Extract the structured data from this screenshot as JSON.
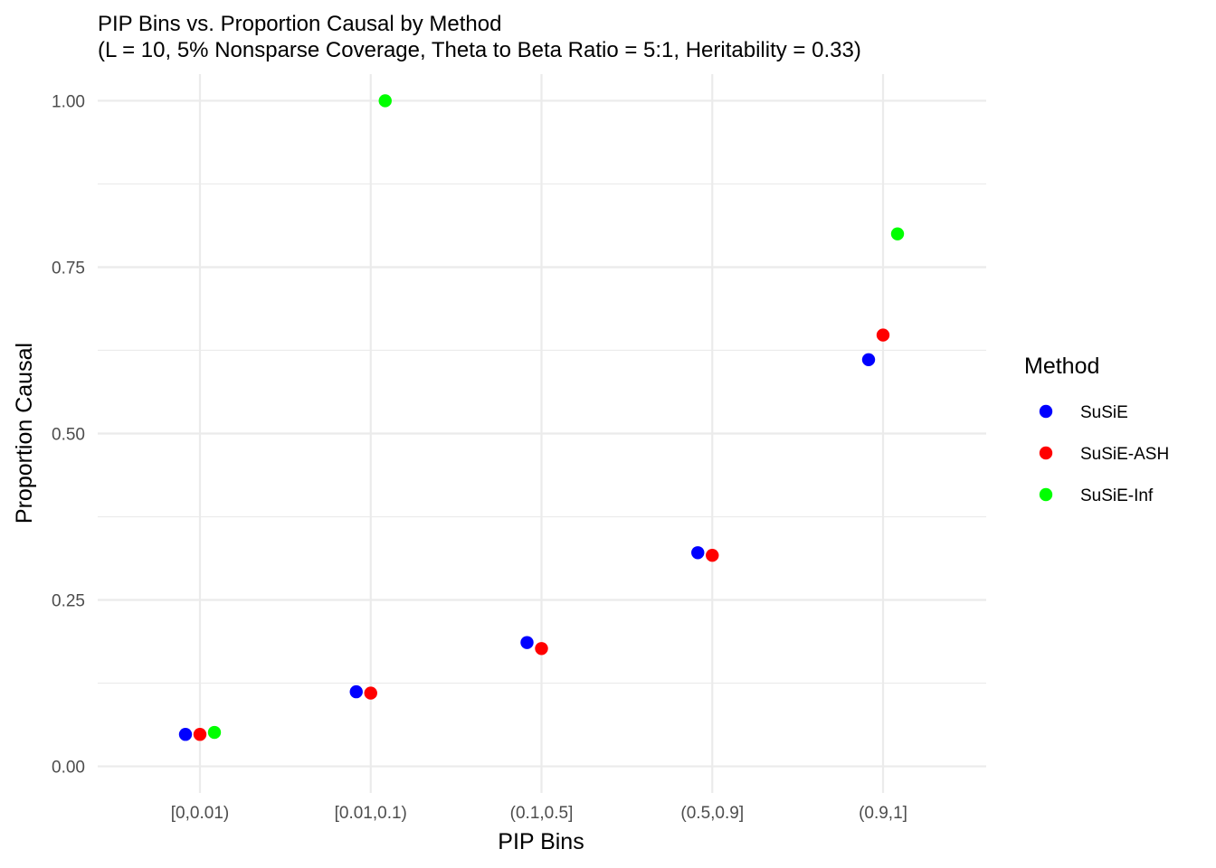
{
  "chart_data": {
    "type": "scatter",
    "title": "PIP Bins vs. Proportion Causal by Method",
    "subtitle": "(L = 10, 5% Nonsparse Coverage, Theta to Beta Ratio = 5:1, Heritability = 0.33)",
    "xlabel": "PIP Bins",
    "ylabel": "Proportion Causal",
    "categories": [
      "[0,0.01)",
      "[0.01,0.1)",
      "(0.1,0.5]",
      "(0.5,0.9]",
      "(0.9,1]"
    ],
    "y_ticks": [
      "0.00",
      "0.25",
      "0.50",
      "0.75",
      "1.00"
    ],
    "ylim": [
      -0.04,
      1.04
    ],
    "grid": true,
    "legend": {
      "title": "Method",
      "placement": "right"
    },
    "series": [
      {
        "name": "SuSiE",
        "color": "#0000ff",
        "points": [
          {
            "category": "[0,0.01)",
            "value": 0.048
          },
          {
            "category": "[0.01,0.1)",
            "value": 0.112
          },
          {
            "category": "(0.1,0.5]",
            "value": 0.186
          },
          {
            "category": "(0.5,0.9]",
            "value": 0.321
          },
          {
            "category": "(0.9,1]",
            "value": 0.611
          }
        ]
      },
      {
        "name": "SuSiE-ASH",
        "color": "#ff0000",
        "points": [
          {
            "category": "[0,0.01)",
            "value": 0.048
          },
          {
            "category": "[0.01,0.1)",
            "value": 0.11
          },
          {
            "category": "(0.1,0.5]",
            "value": 0.177
          },
          {
            "category": "(0.5,0.9]",
            "value": 0.317
          },
          {
            "category": "(0.9,1]",
            "value": 0.648
          }
        ]
      },
      {
        "name": "SuSiE-Inf",
        "color": "#00ff00",
        "points": [
          {
            "category": "[0,0.01)",
            "value": 0.051
          },
          {
            "category": "[0.01,0.1)",
            "value": 1.0
          },
          {
            "category": "(0.9,1]",
            "value": 0.8
          }
        ]
      }
    ]
  }
}
